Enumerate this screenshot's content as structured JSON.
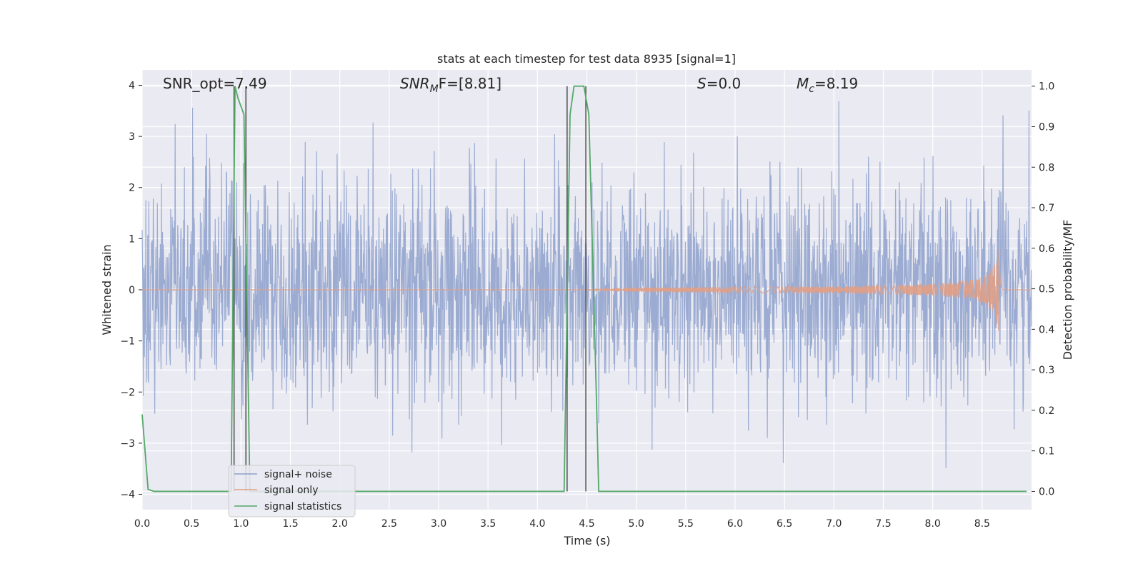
{
  "chart_data": {
    "type": "line",
    "title": "stats at each timestep for test data 8935 [signal=1]",
    "xlabel": "Time (s)",
    "ylabel_left": "Whitened strain",
    "ylabel_right": "Detection probability/MF",
    "xlim": [
      0,
      9
    ],
    "ylim_left": [
      -4.3,
      4.3
    ],
    "ylim_right": [
      -0.045,
      1.04
    ],
    "x_ticks": [
      "0.0",
      "0.5",
      "1.0",
      "1.5",
      "2.0",
      "2.5",
      "3.0",
      "3.5",
      "4.0",
      "4.5",
      "5.0",
      "5.5",
      "6.0",
      "6.5",
      "7.0",
      "7.5",
      "8.0",
      "8.5"
    ],
    "y_left_ticks": [
      "4",
      "3",
      "2",
      "1",
      "0",
      "−1",
      "−2",
      "−3",
      "−4"
    ],
    "y_right_ticks": [
      "1.0",
      "0.9",
      "0.8",
      "0.7",
      "0.6",
      "0.5",
      "0.4",
      "0.3",
      "0.2",
      "0.1",
      "0.0"
    ],
    "grid": true,
    "legend_placement": "lower-left",
    "annotations": {
      "snr_opt": "SNR_opt=7.49",
      "snr_mf_base": "SNR",
      "snr_mf_sub": "M",
      "snr_mf_rest": "F=[8.81]",
      "s_label": "S",
      "s_value": "=0.0",
      "mc_base": "M",
      "mc_sub": "c",
      "mc_value": "=8.19"
    },
    "series": [
      {
        "name": "signal+ noise",
        "color": "#8da0cb",
        "description_values": "whitened noise, approx range -3.5 to 3.6, std ~1"
      },
      {
        "name": "signal only",
        "color": "#e29f84",
        "chirp_start_time": 4.5,
        "merger_time": 8.67,
        "peak_amplitude": 1.0
      },
      {
        "name": "signal statistics",
        "color": "#55a868",
        "axis": "right",
        "x": [
          0.0,
          0.06,
          0.12,
          0.9,
          0.94,
          0.97,
          1.03,
          1.09,
          1.1,
          4.22,
          4.27,
          4.33,
          4.37,
          4.47,
          4.52,
          4.6,
          4.62,
          8.95
        ],
        "y": [
          0.19,
          0.005,
          0.0,
          0.0,
          1.0,
          0.97,
          0.93,
          0.0,
          0.0,
          0.0,
          0.0,
          0.93,
          1.0,
          1.0,
          0.93,
          0.2,
          0.0,
          0.0
        ]
      }
    ],
    "vertical_markers_s": [
      0.93,
      1.05,
      4.3,
      4.49
    ]
  }
}
